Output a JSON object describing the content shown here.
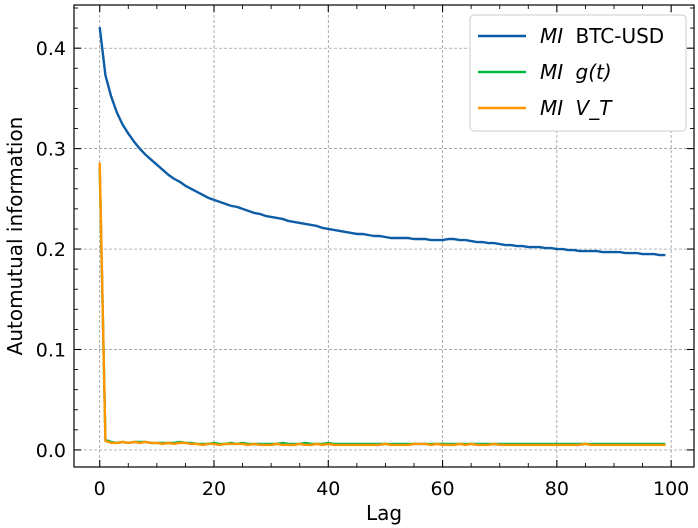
{
  "chart_data": {
    "type": "line",
    "xlabel": "Lag",
    "ylabel": "Automutual information",
    "xlim": [
      -4.5,
      104
    ],
    "ylim": [
      -0.017,
      0.443
    ],
    "x_ticks": [
      0,
      20,
      40,
      60,
      80,
      100
    ],
    "x_tick_labels": [
      "0",
      "20",
      "40",
      "60",
      "80",
      "100"
    ],
    "y_ticks": [
      0.0,
      0.1,
      0.2,
      0.3,
      0.4
    ],
    "y_tick_labels": [
      "0.0",
      "0.1",
      "0.2",
      "0.3",
      "0.4"
    ],
    "grid": true,
    "legend_position": "top-right",
    "x": [
      0,
      1,
      2,
      3,
      4,
      5,
      6,
      7,
      8,
      9,
      10,
      11,
      12,
      13,
      14,
      15,
      16,
      17,
      18,
      19,
      20,
      21,
      22,
      23,
      24,
      25,
      26,
      27,
      28,
      29,
      30,
      31,
      32,
      33,
      34,
      35,
      36,
      37,
      38,
      39,
      40,
      41,
      42,
      43,
      44,
      45,
      46,
      47,
      48,
      49,
      50,
      51,
      52,
      53,
      54,
      55,
      56,
      57,
      58,
      59,
      60,
      61,
      62,
      63,
      64,
      65,
      66,
      67,
      68,
      69,
      70,
      71,
      72,
      73,
      74,
      75,
      76,
      77,
      78,
      79,
      80,
      81,
      82,
      83,
      84,
      85,
      86,
      87,
      88,
      89,
      90,
      91,
      92,
      93,
      94,
      95,
      96,
      97,
      98,
      99
    ],
    "series": [
      {
        "name": "BTC-USD",
        "name_prefix": "MI",
        "color": "#0c5da5",
        "values": [
          0.421,
          0.373,
          0.352,
          0.336,
          0.324,
          0.315,
          0.307,
          0.3,
          0.294,
          0.289,
          0.284,
          0.279,
          0.274,
          0.27,
          0.267,
          0.263,
          0.26,
          0.257,
          0.254,
          0.251,
          0.249,
          0.247,
          0.245,
          0.243,
          0.242,
          0.24,
          0.238,
          0.236,
          0.235,
          0.233,
          0.232,
          0.231,
          0.23,
          0.228,
          0.227,
          0.226,
          0.225,
          0.224,
          0.223,
          0.221,
          0.22,
          0.219,
          0.218,
          0.217,
          0.216,
          0.215,
          0.215,
          0.214,
          0.213,
          0.213,
          0.212,
          0.211,
          0.211,
          0.211,
          0.211,
          0.21,
          0.21,
          0.21,
          0.209,
          0.209,
          0.209,
          0.21,
          0.21,
          0.209,
          0.209,
          0.208,
          0.207,
          0.207,
          0.206,
          0.206,
          0.205,
          0.204,
          0.204,
          0.203,
          0.203,
          0.202,
          0.202,
          0.202,
          0.201,
          0.201,
          0.2,
          0.2,
          0.199,
          0.199,
          0.198,
          0.198,
          0.198,
          0.198,
          0.197,
          0.197,
          0.197,
          0.197,
          0.196,
          0.196,
          0.196,
          0.195,
          0.195,
          0.195,
          0.194,
          0.194
        ]
      },
      {
        "name": "g(t)",
        "name_prefix": "MI",
        "color": "#00b945",
        "values": [
          0.281,
          0.01,
          0.008,
          0.007,
          0.008,
          0.007,
          0.008,
          0.008,
          0.008,
          0.007,
          0.007,
          0.007,
          0.007,
          0.007,
          0.008,
          0.007,
          0.007,
          0.006,
          0.006,
          0.006,
          0.007,
          0.006,
          0.006,
          0.007,
          0.006,
          0.007,
          0.006,
          0.006,
          0.006,
          0.006,
          0.006,
          0.006,
          0.007,
          0.006,
          0.006,
          0.006,
          0.007,
          0.006,
          0.006,
          0.006,
          0.007,
          0.006,
          0.006,
          0.006,
          0.006,
          0.006,
          0.006,
          0.006,
          0.006,
          0.006,
          0.006,
          0.006,
          0.006,
          0.006,
          0.006,
          0.006,
          0.006,
          0.006,
          0.006,
          0.006,
          0.006,
          0.006,
          0.006,
          0.006,
          0.006,
          0.006,
          0.006,
          0.006,
          0.006,
          0.006,
          0.006,
          0.006,
          0.006,
          0.006,
          0.006,
          0.006,
          0.006,
          0.006,
          0.006,
          0.006,
          0.006,
          0.006,
          0.006,
          0.006,
          0.006,
          0.006,
          0.006,
          0.006,
          0.006,
          0.006,
          0.006,
          0.006,
          0.006,
          0.006,
          0.006,
          0.006,
          0.006,
          0.006,
          0.006,
          0.006
        ]
      },
      {
        "name": "V_T",
        "name_prefix": "MI",
        "color": "#ff9500",
        "values": [
          0.286,
          0.009,
          0.007,
          0.007,
          0.008,
          0.007,
          0.008,
          0.007,
          0.008,
          0.007,
          0.007,
          0.006,
          0.007,
          0.006,
          0.007,
          0.007,
          0.006,
          0.006,
          0.005,
          0.006,
          0.006,
          0.005,
          0.006,
          0.006,
          0.006,
          0.006,
          0.005,
          0.006,
          0.005,
          0.005,
          0.005,
          0.006,
          0.005,
          0.005,
          0.005,
          0.006,
          0.005,
          0.005,
          0.006,
          0.005,
          0.006,
          0.005,
          0.005,
          0.005,
          0.005,
          0.005,
          0.005,
          0.005,
          0.005,
          0.005,
          0.006,
          0.005,
          0.005,
          0.005,
          0.005,
          0.006,
          0.006,
          0.006,
          0.005,
          0.006,
          0.005,
          0.005,
          0.005,
          0.006,
          0.005,
          0.006,
          0.005,
          0.005,
          0.005,
          0.006,
          0.005,
          0.005,
          0.005,
          0.005,
          0.005,
          0.005,
          0.005,
          0.005,
          0.005,
          0.005,
          0.005,
          0.005,
          0.005,
          0.005,
          0.005,
          0.006,
          0.005,
          0.005,
          0.005,
          0.005,
          0.005,
          0.005,
          0.005,
          0.005,
          0.005,
          0.005,
          0.005,
          0.005,
          0.005,
          0.005
        ]
      }
    ]
  }
}
